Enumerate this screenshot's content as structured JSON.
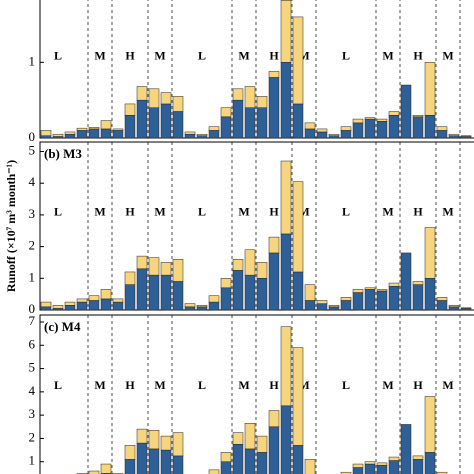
{
  "chart_data": [
    {
      "type": "bar",
      "ylim": [
        0,
        1.85
      ],
      "yticks": [
        0,
        1
      ],
      "annotations": [
        "L",
        "M",
        "H",
        "M",
        "L",
        "M",
        "H",
        "M",
        "L",
        "M",
        "H",
        "M",
        "L"
      ],
      "series": [
        {
          "color": "#2e5f96",
          "values": [
            0.03,
            0.02,
            0.05,
            0.1,
            0.12,
            0.12,
            0.1,
            0.3,
            0.5,
            0.4,
            0.45,
            0.35,
            0.05,
            0.03,
            0.1,
            0.28,
            0.5,
            0.4,
            0.4,
            0.8,
            1.0,
            0.45,
            0.12,
            0.08,
            0.03,
            0.1,
            0.2,
            0.25,
            0.22,
            0.3,
            0.7,
            0.28,
            0.3,
            0.1,
            0.03,
            0.02
          ]
        },
        {
          "color": "#f7d57e",
          "values": [
            0.07,
            0.03,
            0.03,
            0.03,
            0.02,
            0.11,
            0.02,
            0.15,
            0.18,
            0.25,
            0.15,
            0.2,
            0.03,
            0.02,
            0.05,
            0.12,
            0.15,
            0.28,
            0.15,
            0.08,
            0.82,
            1.15,
            0.08,
            0.04,
            0.02,
            0.05,
            0.05,
            0.02,
            0.03,
            0.05,
            0,
            0.02,
            0.7,
            0.05,
            0.02,
            0.01
          ]
        }
      ]
    },
    {
      "type": "bar",
      "title": "(b) M3",
      "y_label": "Runoff (×10⁷ m³ month⁻¹)",
      "ylim": [
        0,
        5.3
      ],
      "yticks": [
        0,
        1,
        2,
        3,
        4,
        5
      ],
      "annotations": [
        "L",
        "M",
        "H",
        "M",
        "L",
        "M",
        "H",
        "M",
        "L",
        "M",
        "H",
        "M",
        "L"
      ],
      "series": [
        {
          "color": "#2e5f96",
          "values": [
            0.1,
            0.05,
            0.15,
            0.25,
            0.3,
            0.35,
            0.25,
            0.8,
            1.3,
            1.1,
            1.1,
            0.9,
            0.1,
            0.1,
            0.25,
            0.7,
            1.25,
            1.1,
            1.0,
            1.8,
            2.4,
            1.2,
            0.3,
            0.2,
            0.1,
            0.3,
            0.55,
            0.65,
            0.6,
            0.75,
            1.8,
            0.8,
            1.0,
            0.3,
            0.1,
            0.05
          ]
        },
        {
          "color": "#f7d57e",
          "values": [
            0.15,
            0.1,
            0.1,
            0.1,
            0.15,
            0.3,
            0.1,
            0.4,
            0.4,
            0.55,
            0.4,
            0.7,
            0.1,
            0.05,
            0.2,
            0.3,
            0.35,
            0.8,
            0.5,
            0.5,
            2.3,
            2.85,
            0.5,
            0.1,
            0.05,
            0.1,
            0.1,
            0.05,
            0.05,
            0.1,
            0,
            0.1,
            1.6,
            0.1,
            0.05,
            0.02
          ]
        }
      ]
    },
    {
      "type": "bar",
      "title": "(c) M4",
      "ylim": [
        0,
        7.3
      ],
      "yticks": [
        1,
        2,
        3,
        4,
        5,
        6,
        7
      ],
      "annotations": [
        "L",
        "M",
        "H",
        "M",
        "L",
        "M",
        "H",
        "M",
        "L",
        "M",
        "H",
        "M",
        "L"
      ],
      "series": [
        {
          "color": "#2e5f96",
          "values": [
            0.15,
            0.1,
            0.2,
            0.35,
            0.4,
            0.5,
            0.35,
            1.1,
            1.8,
            1.55,
            1.5,
            1.25,
            0.15,
            0.15,
            0.35,
            1.0,
            1.75,
            1.55,
            1.4,
            2.5,
            3.4,
            1.7,
            0.4,
            0.3,
            0.15,
            0.4,
            0.75,
            0.9,
            0.85,
            1.05,
            2.6,
            1.1,
            1.4,
            0.4,
            0.15,
            0.07
          ]
        },
        {
          "color": "#f7d57e",
          "values": [
            0.2,
            0.15,
            0.15,
            0.15,
            0.2,
            0.4,
            0.15,
            0.6,
            0.6,
            0.8,
            0.6,
            1.0,
            0.15,
            0.05,
            0.3,
            0.4,
            0.5,
            1.1,
            0.7,
            0.7,
            3.4,
            4.2,
            0.7,
            0.15,
            0.07,
            0.15,
            0.15,
            0.1,
            0.1,
            0.15,
            0,
            0.15,
            2.4,
            0.15,
            0.05,
            0.03
          ]
        }
      ]
    }
  ]
}
